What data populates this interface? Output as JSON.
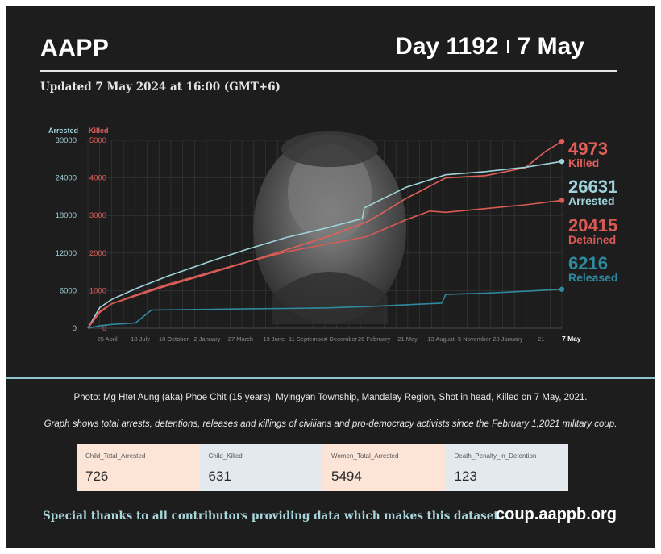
{
  "header": {
    "org": "AAPP",
    "day_label": "Day 1192",
    "date_label": "7 May",
    "updated": "Updated 7 May 2024 at 16:00 (GMT+6)"
  },
  "colors": {
    "killed": "#e0605a",
    "arrested": "#9fd2d9",
    "detained": "#d85a55",
    "released": "#2f8aa0",
    "background": "#1d1d1d"
  },
  "chart_data": {
    "type": "line",
    "left_axis": {
      "label": "Arrested",
      "ticks": [
        "30000",
        "24000",
        "18000",
        "12000",
        "6000",
        "0"
      ],
      "range": [
        0,
        30000
      ]
    },
    "right_axis": {
      "label": "Killed",
      "ticks": [
        "5000",
        "4000",
        "3000",
        "2000",
        "1000",
        "0"
      ],
      "range": [
        0,
        5000
      ]
    },
    "x_domain": [
      0,
      1192
    ],
    "x_ticks": [
      {
        "label": "25 April",
        "x": 49
      },
      {
        "label": "18 July",
        "x": 132
      },
      {
        "label": "10 October",
        "x": 216
      },
      {
        "label": "2 January",
        "x": 300
      },
      {
        "label": "27 March",
        "x": 384
      },
      {
        "label": "19 June",
        "x": 468
      },
      {
        "label": "11 September",
        "x": 552
      },
      {
        "label": "4 December",
        "x": 636
      },
      {
        "label": "26 February",
        "x": 720
      },
      {
        "label": "21 May",
        "x": 804
      },
      {
        "label": "13 August",
        "x": 888
      },
      {
        "label": "5 November",
        "x": 972
      },
      {
        "label": "28 January",
        "x": 1056
      },
      {
        "label": "21",
        "x": 1140
      },
      {
        "label": "7 May",
        "x": 1192
      }
    ],
    "grid": true,
    "series": [
      {
        "name": "Killed",
        "axis": "right",
        "end_value": "4973",
        "x": [
          0,
          30,
          60,
          120,
          200,
          300,
          400,
          500,
          600,
          700,
          730,
          800,
          900,
          1000,
          1100,
          1150,
          1192
        ],
        "y": [
          0,
          420,
          650,
          860,
          1130,
          1440,
          1760,
          2090,
          2430,
          2820,
          3000,
          3450,
          4000,
          4060,
          4270,
          4700,
          4973
        ]
      },
      {
        "name": "Arrested",
        "axis": "left",
        "end_value": "26631",
        "x": [
          0,
          30,
          60,
          120,
          200,
          300,
          400,
          500,
          600,
          690,
          695,
          800,
          900,
          1000,
          1100,
          1192
        ],
        "y": [
          0,
          3300,
          4600,
          6300,
          8300,
          10500,
          12600,
          14500,
          16000,
          17500,
          19200,
          22500,
          24500,
          25000,
          25700,
          26631
        ]
      },
      {
        "name": "Detained",
        "axis": "left",
        "end_value": "20415",
        "x": [
          0,
          30,
          60,
          120,
          200,
          300,
          400,
          500,
          600,
          700,
          800,
          860,
          900,
          1000,
          1100,
          1192
        ],
        "y": [
          0,
          2700,
          3900,
          5300,
          7000,
          8800,
          10600,
          12200,
          13400,
          14600,
          17300,
          18700,
          18500,
          19100,
          19700,
          20415
        ]
      },
      {
        "name": "Released",
        "axis": "left",
        "end_value": "6216",
        "x": [
          0,
          30,
          60,
          120,
          160,
          300,
          400,
          500,
          600,
          700,
          800,
          890,
          900,
          1000,
          1100,
          1192
        ],
        "y": [
          0,
          400,
          600,
          850,
          2900,
          3000,
          3100,
          3150,
          3250,
          3450,
          3750,
          4000,
          5400,
          5600,
          5900,
          6216
        ]
      }
    ]
  },
  "captions": {
    "photo": "Photo: Mg Htet Aung (aka) Phoe Chit (15 years), Myingyan Township, Mandalay Region, Shot in head, Killed on 7 May, 2021.",
    "note": "Graph shows total arrests, detentions, releases and killings of civilians and pro-democracy activists since the February 1,2021 military coup."
  },
  "kpis": [
    {
      "label": "Child_Total_Arrested",
      "value": "726",
      "color": "#fce4d6"
    },
    {
      "label": "Child_Killed",
      "value": "631",
      "color": "#e4e9f0"
    },
    {
      "label": "Women_Total_Arrested",
      "value": "5494",
      "color": "#fce4d6"
    },
    {
      "label": "Death_Penalty_in_Detention",
      "value": "123",
      "color": "#e4e9f0"
    }
  ],
  "footer": {
    "thanks": "Special thanks to all contributors providing data which makes this dataset.",
    "url": "coup.aappb.org"
  }
}
